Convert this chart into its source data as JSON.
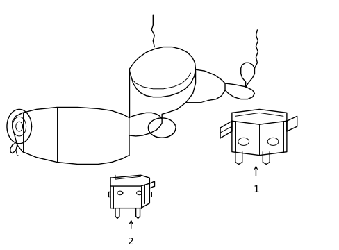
{
  "bg_color": "#ffffff",
  "line_color": "#000000",
  "lw": 1.0,
  "tlw": 0.7,
  "figsize": [
    4.89,
    3.6
  ],
  "dpi": 100
}
